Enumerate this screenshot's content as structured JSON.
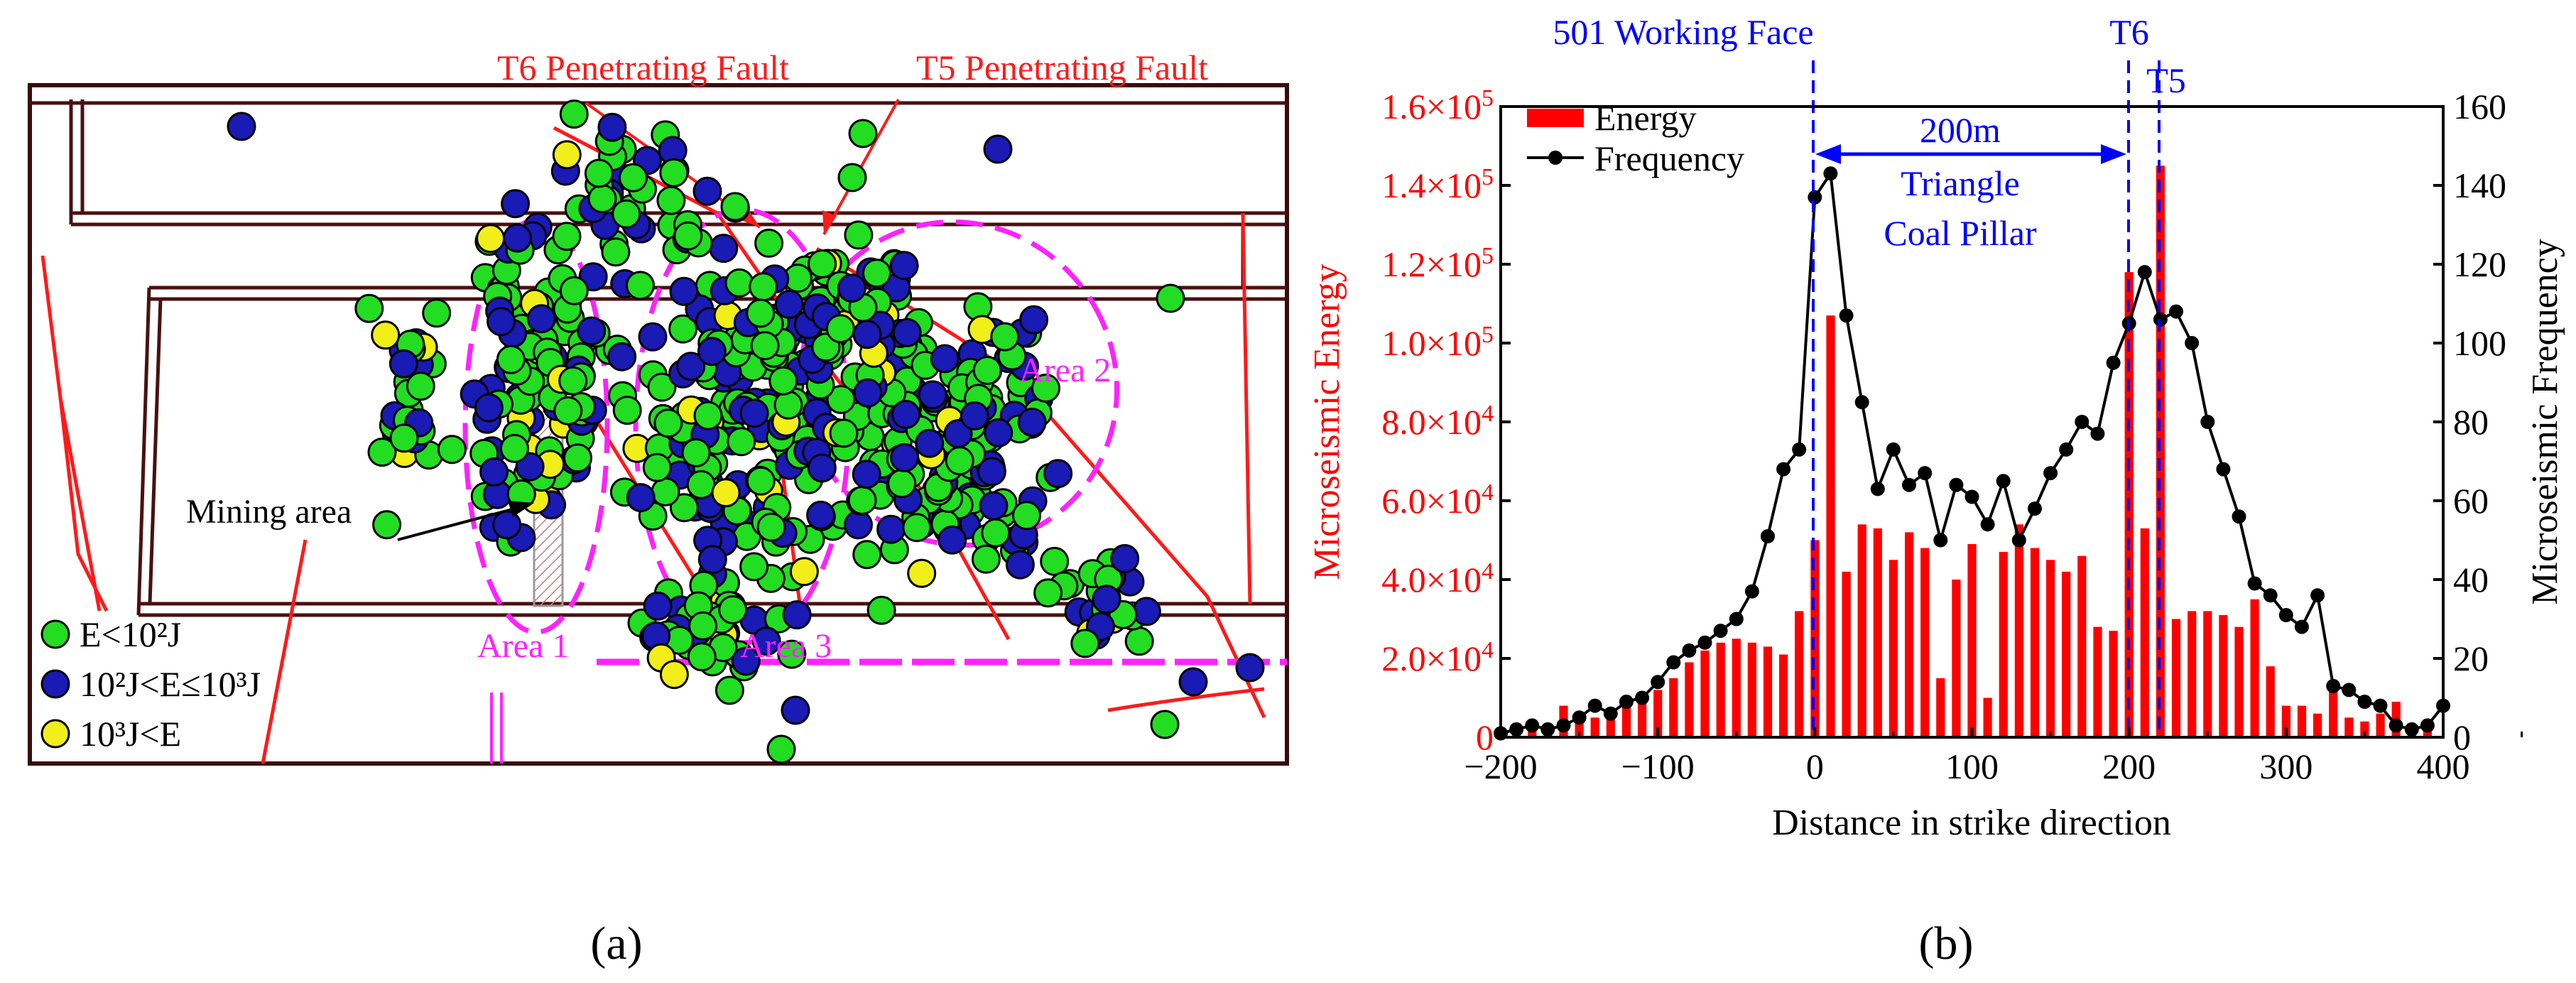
{
  "panel_a": {
    "label": "(a)",
    "faults": [
      {
        "name": "T6 Penetrating Fault"
      },
      {
        "name": "T5 Penetrating Fault"
      }
    ],
    "areas": [
      "Area 1",
      "Area 2",
      "Area 3"
    ],
    "mining_area": "Mining area",
    "legend": [
      {
        "label": "E<10²J",
        "color": "#22dd22"
      },
      {
        "label": "10²J<E≤10³J",
        "color": "#1a1ab4"
      },
      {
        "label": "10³J<E",
        "color": "#f2ee1a"
      }
    ],
    "colors": {
      "green": "#22dd22",
      "blue": "#1a1ab4",
      "yellow": "#f2ee1a",
      "fault": "#ff1a1a",
      "area": "#ff22ff",
      "roadway": "#4a1010"
    }
  },
  "panel_b": {
    "label": "(b)",
    "annotations": {
      "working_face": "501 Working Face",
      "t6": "T6",
      "t5": "T5",
      "span": "200m",
      "pillar_line1": "Triangle",
      "pillar_line2": "Coal Pillar"
    },
    "legend": {
      "energy": "Energy",
      "frequency": "Frequency"
    }
  },
  "chart_data": {
    "type": "bar+line",
    "xlabel": "Distance in strike direction",
    "ylabel_left": "Microseismic Energy",
    "ylabel_right": "Microseismic Frequency",
    "xlim": [
      -200,
      400
    ],
    "ylim_left": [
      0,
      160000
    ],
    "ylim_right": [
      0,
      160
    ],
    "xticks": [
      "−200",
      "−100",
      "0",
      "100",
      "200",
      "300",
      "400"
    ],
    "yticks_left": [
      {
        "m": "0",
        "e": ""
      },
      {
        "m": "2.0×10",
        "e": "4"
      },
      {
        "m": "4.0×10",
        "e": "4"
      },
      {
        "m": "6.0×10",
        "e": "4"
      },
      {
        "m": "8.0×10",
        "e": "4"
      },
      {
        "m": "1.0×10",
        "e": "5"
      },
      {
        "m": "1.2×10",
        "e": "5"
      },
      {
        "m": "1.4×10",
        "e": "5"
      },
      {
        "m": "1.6×10",
        "e": "5"
      }
    ],
    "yticks_right": [
      "0",
      "20",
      "40",
      "60",
      "80",
      "100",
      "120",
      "140",
      "160"
    ],
    "colors": {
      "energy": "#ff0000",
      "frequency": "#000000",
      "marker": "#0000ff"
    },
    "energy": {
      "x": [
        -190,
        -180,
        -170,
        -160,
        -150,
        -140,
        -130,
        -120,
        -110,
        -100,
        -90,
        -80,
        -70,
        -60,
        -50,
        -40,
        -30,
        -20,
        -10,
        0,
        10,
        20,
        30,
        40,
        50,
        60,
        70,
        80,
        90,
        100,
        110,
        120,
        130,
        140,
        150,
        160,
        170,
        180,
        190,
        200,
        210,
        220,
        230,
        240,
        250,
        260,
        270,
        280,
        290,
        300,
        310,
        320,
        330,
        340,
        350,
        360,
        370,
        380,
        390
      ],
      "values": [
        1000,
        2000,
        3000,
        8000,
        4000,
        5000,
        7000,
        8000,
        9000,
        12000,
        15000,
        19000,
        22000,
        24000,
        25000,
        24000,
        23000,
        21000,
        32000,
        50000,
        107000,
        42000,
        54000,
        53000,
        45000,
        52000,
        48000,
        15000,
        40000,
        49000,
        10000,
        47000,
        54000,
        48000,
        45000,
        42000,
        46000,
        28000,
        27000,
        118000,
        53000,
        145000,
        30000,
        32000,
        32000,
        31000,
        28000,
        35000,
        18000,
        8000,
        8000,
        6000,
        14000,
        5000,
        4000,
        6000,
        9000,
        3000,
        2000
      ]
    },
    "frequency": {
      "x": [
        -200,
        -190,
        -180,
        -170,
        -160,
        -150,
        -140,
        -130,
        -120,
        -110,
        -100,
        -90,
        -80,
        -70,
        -60,
        -50,
        -40,
        -30,
        -20,
        -10,
        0,
        10,
        20,
        30,
        40,
        50,
        60,
        70,
        80,
        90,
        100,
        110,
        120,
        130,
        140,
        150,
        160,
        170,
        180,
        190,
        200,
        210,
        220,
        230,
        240,
        250,
        260,
        270,
        280,
        290,
        300,
        310,
        320,
        330,
        340,
        350,
        360,
        370,
        380,
        390,
        400
      ],
      "values": [
        1,
        2,
        3,
        2,
        3,
        5,
        8,
        6,
        9,
        10,
        14,
        19,
        22,
        24,
        27,
        30,
        37,
        51,
        68,
        73,
        137,
        143,
        107,
        85,
        63,
        73,
        64,
        67,
        50,
        64,
        61,
        54,
        65,
        50,
        58,
        67,
        73,
        80,
        77,
        95,
        105,
        118,
        106,
        108,
        100,
        80,
        68,
        56,
        39,
        36,
        31,
        28,
        36,
        13,
        12,
        9,
        8,
        3,
        2,
        3,
        8
      ]
    }
  }
}
